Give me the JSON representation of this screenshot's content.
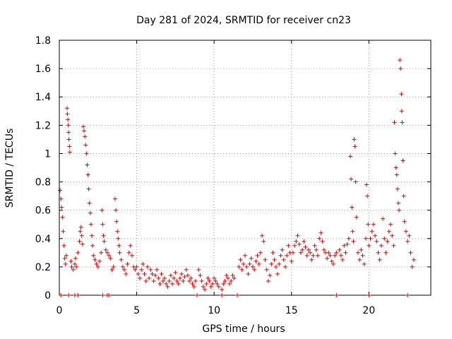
{
  "chart_data": {
    "type": "scatter",
    "title": "Day 281 of 2024, SRMTID for receiver cn23",
    "xlabel": "GPS time / hours",
    "ylabel": "SRMTID / TECUs",
    "xlim": [
      0,
      24
    ],
    "ylim": [
      0,
      1.8
    ],
    "xticks": [
      0,
      5,
      10,
      15,
      20
    ],
    "yticks": [
      0,
      0.2,
      0.4,
      0.6,
      0.8,
      1,
      1.2,
      1.4,
      1.6,
      1.8
    ],
    "xtick_labels": [
      "0",
      "5",
      "10",
      "15",
      "20"
    ],
    "ytick_labels": [
      "0",
      "0.2",
      "0.4",
      "0.6",
      "0.8",
      "1",
      "1.2",
      "1.4",
      "1.6",
      "1.8"
    ],
    "grid": true,
    "marker": "+",
    "color": "#e00000",
    "series": [
      {
        "name": "SRMTID",
        "points": [
          [
            0.05,
            0.74
          ],
          [
            0.1,
            0.68
          ],
          [
            0.15,
            0.62
          ],
          [
            0.2,
            0.55
          ],
          [
            0.25,
            0.45
          ],
          [
            0.3,
            0.35
          ],
          [
            0.35,
            0.26
          ],
          [
            0.4,
            0.22
          ],
          [
            0.45,
            0.28
          ],
          [
            0.5,
            1.32
          ],
          [
            0.52,
            1.28
          ],
          [
            0.55,
            1.24
          ],
          [
            0.58,
            1.2
          ],
          [
            0.6,
            1.15
          ],
          [
            0.62,
            1.1
          ],
          [
            0.65,
            1.05
          ],
          [
            0.68,
            1.01
          ],
          [
            0.75,
            0.24
          ],
          [
            0.8,
            0.2
          ],
          [
            0.9,
            0.18
          ],
          [
            1.0,
            0.22
          ],
          [
            1.05,
            0.26
          ],
          [
            1.1,
            0.2
          ],
          [
            1.2,
            0.3
          ],
          [
            1.3,
            0.38
          ],
          [
            1.35,
            0.45
          ],
          [
            1.4,
            0.48
          ],
          [
            1.45,
            0.42
          ],
          [
            1.5,
            0.36
          ],
          [
            1.55,
            1.19
          ],
          [
            1.6,
            1.16
          ],
          [
            1.65,
            1.12
          ],
          [
            1.7,
            1.06
          ],
          [
            1.75,
            1.0
          ],
          [
            1.8,
            0.92
          ],
          [
            1.85,
            0.85
          ],
          [
            1.9,
            0.75
          ],
          [
            1.95,
            0.65
          ],
          [
            2.0,
            0.58
          ],
          [
            2.05,
            0.5
          ],
          [
            2.1,
            0.42
          ],
          [
            2.15,
            0.35
          ],
          [
            2.2,
            0.28
          ],
          [
            2.3,
            0.25
          ],
          [
            2.4,
            0.22
          ],
          [
            2.5,
            0.2
          ],
          [
            2.6,
            0.24
          ],
          [
            2.7,
            0.3
          ],
          [
            2.75,
            0.6
          ],
          [
            2.8,
            0.5
          ],
          [
            2.85,
            0.42
          ],
          [
            2.9,
            0.38
          ],
          [
            3.0,
            0.32
          ],
          [
            3.1,
            0.3
          ],
          [
            3.2,
            0.28
          ],
          [
            3.3,
            0.26
          ],
          [
            3.4,
            0.18
          ],
          [
            3.5,
            0.2
          ],
          [
            3.6,
            0.68
          ],
          [
            3.65,
            0.6
          ],
          [
            3.7,
            0.52
          ],
          [
            3.75,
            0.45
          ],
          [
            3.8,
            0.4
          ],
          [
            3.85,
            0.35
          ],
          [
            3.9,
            0.3
          ],
          [
            4.0,
            0.25
          ],
          [
            4.1,
            0.2
          ],
          [
            4.2,
            0.18
          ],
          [
            4.3,
            0.15
          ],
          [
            4.4,
            0.22
          ],
          [
            4.5,
            0.3
          ],
          [
            4.6,
            0.35
          ],
          [
            4.7,
            0.28
          ],
          [
            4.8,
            0.2
          ],
          [
            4.9,
            0.18
          ],
          [
            5.0,
            0.2
          ],
          [
            5.1,
            0.15
          ],
          [
            5.2,
            0.12
          ],
          [
            5.3,
            0.18
          ],
          [
            5.4,
            0.22
          ],
          [
            5.5,
            0.15
          ],
          [
            5.6,
            0.1
          ],
          [
            5.7,
            0.2
          ],
          [
            5.8,
            0.12
          ],
          [
            5.9,
            0.18
          ],
          [
            6.0,
            0.15
          ],
          [
            6.1,
            0.1
          ],
          [
            6.2,
            0.14
          ],
          [
            6.3,
            0.18
          ],
          [
            6.4,
            0.12
          ],
          [
            6.5,
            0.08
          ],
          [
            6.6,
            0.15
          ],
          [
            6.7,
            0.1
          ],
          [
            6.8,
            0.12
          ],
          [
            6.9,
            0.08
          ],
          [
            7.0,
            0.06
          ],
          [
            7.1,
            0.1
          ],
          [
            7.2,
            0.14
          ],
          [
            7.3,
            0.08
          ],
          [
            7.4,
            0.12
          ],
          [
            7.5,
            0.16
          ],
          [
            7.6,
            0.1
          ],
          [
            7.7,
            0.08
          ],
          [
            7.8,
            0.12
          ],
          [
            7.9,
            0.15
          ],
          [
            8.0,
            0.1
          ],
          [
            8.1,
            0.13
          ],
          [
            8.2,
            0.18
          ],
          [
            8.3,
            0.14
          ],
          [
            8.4,
            0.1
          ],
          [
            8.5,
            0.12
          ],
          [
            8.6,
            0.08
          ],
          [
            8.7,
            0.06
          ],
          [
            8.8,
            0.1
          ],
          [
            9.0,
            0.18
          ],
          [
            9.1,
            0.14
          ],
          [
            9.2,
            0.1
          ],
          [
            9.3,
            0.06
          ],
          [
            9.4,
            0.04
          ],
          [
            9.5,
            0.08
          ],
          [
            9.6,
            0.12
          ],
          [
            9.7,
            0.1
          ],
          [
            9.8,
            0.06
          ],
          [
            9.9,
            0.08
          ],
          [
            10.0,
            0.12
          ],
          [
            10.1,
            0.1
          ],
          [
            10.2,
            0.08
          ],
          [
            10.3,
            0.06
          ],
          [
            10.5,
            0.04
          ],
          [
            10.6,
            0.08
          ],
          [
            10.7,
            0.1
          ],
          [
            10.8,
            0.14
          ],
          [
            10.9,
            0.12
          ],
          [
            11.0,
            0.08
          ],
          [
            11.1,
            0.1
          ],
          [
            11.2,
            0.14
          ],
          [
            11.3,
            0.12
          ],
          [
            11.6,
            0.2
          ],
          [
            11.7,
            0.25
          ],
          [
            11.8,
            0.18
          ],
          [
            11.9,
            0.22
          ],
          [
            12.0,
            0.28
          ],
          [
            12.1,
            0.2
          ],
          [
            12.2,
            0.15
          ],
          [
            12.3,
            0.22
          ],
          [
            12.4,
            0.26
          ],
          [
            12.5,
            0.2
          ],
          [
            12.6,
            0.18
          ],
          [
            12.7,
            0.24
          ],
          [
            12.8,
            0.28
          ],
          [
            12.9,
            0.22
          ],
          [
            13.0,
            0.3
          ],
          [
            13.1,
            0.42
          ],
          [
            13.2,
            0.38
          ],
          [
            13.3,
            0.25
          ],
          [
            13.4,
            0.18
          ],
          [
            13.5,
            0.1
          ],
          [
            13.6,
            0.14
          ],
          [
            13.7,
            0.22
          ],
          [
            13.8,
            0.3
          ],
          [
            13.9,
            0.25
          ],
          [
            14.0,
            0.2
          ],
          [
            14.1,
            0.15
          ],
          [
            14.2,
            0.22
          ],
          [
            14.3,
            0.28
          ],
          [
            14.4,
            0.32
          ],
          [
            14.5,
            0.25
          ],
          [
            14.6,
            0.2
          ],
          [
            14.7,
            0.28
          ],
          [
            14.8,
            0.35
          ],
          [
            14.9,
            0.3
          ],
          [
            15.0,
            0.24
          ],
          [
            15.1,
            0.3
          ],
          [
            15.2,
            0.35
          ],
          [
            15.3,
            0.38
          ],
          [
            15.4,
            0.42
          ],
          [
            15.5,
            0.36
          ],
          [
            15.6,
            0.3
          ],
          [
            15.7,
            0.32
          ],
          [
            15.8,
            0.38
          ],
          [
            15.9,
            0.34
          ],
          [
            16.0,
            0.28
          ],
          [
            16.1,
            0.32
          ],
          [
            16.2,
            0.3
          ],
          [
            16.3,
            0.25
          ],
          [
            16.4,
            0.28
          ],
          [
            16.5,
            0.35
          ],
          [
            16.6,
            0.32
          ],
          [
            16.7,
            0.28
          ],
          [
            16.8,
            0.4
          ],
          [
            16.9,
            0.44
          ],
          [
            17.0,
            0.38
          ],
          [
            17.1,
            0.32
          ],
          [
            17.2,
            0.3
          ],
          [
            17.3,
            0.26
          ],
          [
            17.4,
            0.3
          ],
          [
            17.5,
            0.28
          ],
          [
            17.6,
            0.24
          ],
          [
            17.7,
            0.22
          ],
          [
            17.8,
            0.28
          ],
          [
            17.9,
            0.3
          ],
          [
            18.1,
            0.32
          ],
          [
            18.2,
            0.28
          ],
          [
            18.3,
            0.25
          ],
          [
            18.4,
            0.35
          ],
          [
            18.5,
            0.3
          ],
          [
            18.6,
            0.36
          ],
          [
            18.7,
            0.4
          ],
          [
            18.8,
            0.98
          ],
          [
            18.85,
            0.82
          ],
          [
            18.9,
            0.62
          ],
          [
            18.95,
            0.45
          ],
          [
            19.0,
            0.38
          ],
          [
            19.05,
            1.1
          ],
          [
            19.1,
            1.05
          ],
          [
            19.15,
            0.8
          ],
          [
            19.2,
            0.55
          ],
          [
            19.3,
            0.3
          ],
          [
            19.4,
            0.25
          ],
          [
            19.5,
            0.32
          ],
          [
            19.6,
            0.28
          ],
          [
            19.7,
            0.22
          ],
          [
            19.8,
            0.4
          ],
          [
            19.85,
            0.78
          ],
          [
            19.9,
            0.7
          ],
          [
            19.95,
            0.5
          ],
          [
            20.0,
            0.35
          ],
          [
            20.1,
            0.4
          ],
          [
            20.2,
            0.45
          ],
          [
            20.3,
            0.5
          ],
          [
            20.4,
            0.42
          ],
          [
            20.5,
            0.38
          ],
          [
            20.6,
            0.3
          ],
          [
            20.7,
            0.25
          ],
          [
            20.8,
            0.35
          ],
          [
            20.9,
            0.54
          ],
          [
            21.0,
            0.4
          ],
          [
            21.1,
            0.3
          ],
          [
            21.2,
            0.38
          ],
          [
            21.3,
            0.45
          ],
          [
            21.4,
            0.5
          ],
          [
            21.5,
            0.42
          ],
          [
            21.6,
            0.35
          ],
          [
            21.65,
            1.22
          ],
          [
            21.7,
            1.0
          ],
          [
            21.75,
            0.9
          ],
          [
            21.8,
            0.85
          ],
          [
            21.85,
            0.75
          ],
          [
            21.9,
            0.65
          ],
          [
            21.95,
            0.6
          ],
          [
            22.0,
            1.66
          ],
          [
            22.05,
            1.6
          ],
          [
            22.1,
            1.42
          ],
          [
            22.12,
            1.3
          ],
          [
            22.15,
            1.22
          ],
          [
            22.2,
            0.95
          ],
          [
            22.25,
            0.7
          ],
          [
            22.3,
            0.52
          ],
          [
            22.4,
            0.45
          ],
          [
            22.5,
            0.38
          ],
          [
            22.6,
            0.42
          ],
          [
            22.7,
            0.3
          ],
          [
            22.8,
            0.2
          ],
          [
            22.9,
            0.25
          ]
        ]
      }
    ],
    "zero_points": [
      0.1,
      0.6,
      1.0,
      1.2,
      2.8,
      3.1,
      3.2,
      8.9,
      10.5,
      11.5,
      17.9,
      20.0,
      22.5
    ]
  }
}
